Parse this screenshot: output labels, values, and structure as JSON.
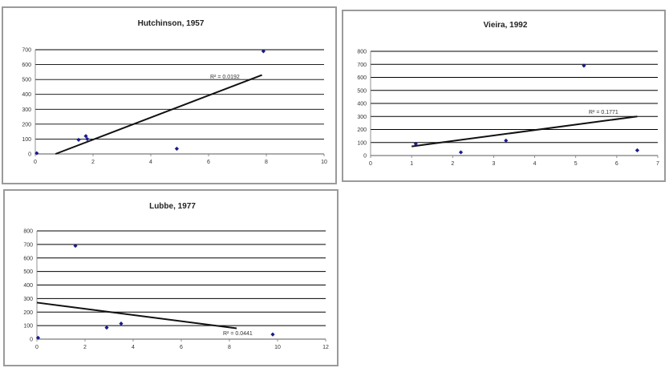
{
  "chart_data": [
    {
      "type": "scatter",
      "title": "Hutchinson, 1957",
      "x_ticks": [
        "0",
        "2",
        "4",
        "6",
        "8",
        "10"
      ],
      "y_ticks": [
        "0",
        "100",
        "200",
        "300",
        "400",
        "500",
        "600",
        "700"
      ],
      "xlim": [
        0,
        10
      ],
      "ylim": [
        0,
        700
      ],
      "points": [
        [
          0.05,
          5
        ],
        [
          1.5,
          95
        ],
        [
          1.75,
          120
        ],
        [
          1.8,
          100
        ],
        [
          4.9,
          35
        ],
        [
          7.9,
          690
        ]
      ],
      "trendline": [
        [
          0.7,
          0
        ],
        [
          7.85,
          530
        ]
      ],
      "annotation": "R² = 0.0192",
      "marker_color": "#1a1a8c",
      "grid": "horizontal"
    },
    {
      "type": "scatter",
      "title": "Vieira, 1992",
      "x_ticks": [
        "0",
        "1",
        "2",
        "3",
        "4",
        "5",
        "6",
        "7"
      ],
      "y_ticks": [
        "0",
        "100",
        "200",
        "300",
        "400",
        "500",
        "600",
        "700",
        "800"
      ],
      "xlim": [
        0,
        7
      ],
      "ylim": [
        0,
        800
      ],
      "points": [
        [
          1.1,
          90
        ],
        [
          2.2,
          25
        ],
        [
          3.3,
          115
        ],
        [
          5.2,
          690
        ],
        [
          6.5,
          40
        ]
      ],
      "trendline": [
        [
          1.0,
          70
        ],
        [
          6.5,
          300
        ]
      ],
      "annotation": "R² = 0.1771",
      "marker_color": "#1a1a8c",
      "grid": "horizontal"
    },
    {
      "type": "scatter",
      "title": "Lubbe, 1977",
      "x_ticks": [
        "0",
        "2",
        "4",
        "6",
        "8",
        "10",
        "12"
      ],
      "y_ticks": [
        "0",
        "100",
        "200",
        "300",
        "400",
        "500",
        "600",
        "700",
        "800"
      ],
      "xlim": [
        0,
        12
      ],
      "ylim": [
        0,
        800
      ],
      "points": [
        [
          0.05,
          10
        ],
        [
          1.6,
          690
        ],
        [
          2.9,
          85
        ],
        [
          3.5,
          115
        ],
        [
          9.8,
          35
        ]
      ],
      "trendline": [
        [
          0,
          270
        ],
        [
          8.3,
          80
        ]
      ],
      "annotation": "R² = 0.0441",
      "marker_color": "#1a1a8c",
      "grid": "horizontal"
    }
  ]
}
